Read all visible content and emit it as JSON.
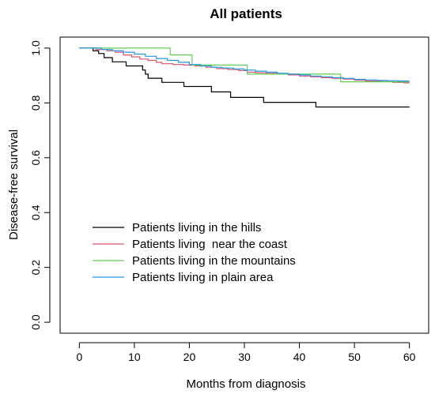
{
  "chart_data": {
    "type": "line",
    "title": "All patients",
    "xlabel": "Months from diagnosis",
    "ylabel": "Disease-free survival",
    "xlim": [
      -3.5,
      63.5
    ],
    "ylim": [
      -0.04,
      1.04
    ],
    "x_ticks": [
      0,
      10,
      20,
      30,
      40,
      50,
      60
    ],
    "y_ticks": [
      0.0,
      0.2,
      0.4,
      0.6,
      0.8,
      1.0
    ],
    "x_tick_labels": [
      "0",
      "10",
      "20",
      "30",
      "40",
      "50",
      "60"
    ],
    "y_tick_labels": [
      "0.0",
      "0.2",
      "0.4",
      "0.6",
      "0.8",
      "1.0"
    ],
    "legend_position": "lower-left",
    "series": [
      {
        "name": "Patients living in the hills",
        "color": "#000000",
        "step": true,
        "points": [
          [
            0,
            1.0
          ],
          [
            2.5,
            0.99
          ],
          [
            3.5,
            0.98
          ],
          [
            4.5,
            0.965
          ],
          [
            6,
            0.95
          ],
          [
            8.5,
            0.935
          ],
          [
            11.5,
            0.92
          ],
          [
            12,
            0.905
          ],
          [
            12.5,
            0.89
          ],
          [
            15,
            0.875
          ],
          [
            19,
            0.86
          ],
          [
            24,
            0.84
          ],
          [
            27.5,
            0.82
          ],
          [
            33.5,
            0.802
          ],
          [
            43,
            0.785
          ],
          [
            60,
            0.785
          ]
        ]
      },
      {
        "name": "Patients living  near the coast",
        "color": "#DF536B",
        "step": true,
        "points": [
          [
            0,
            1.0
          ],
          [
            3,
            0.995
          ],
          [
            5,
            0.99
          ],
          [
            6.5,
            0.985
          ],
          [
            8,
            0.975
          ],
          [
            9.5,
            0.968
          ],
          [
            11,
            0.96
          ],
          [
            12.5,
            0.955
          ],
          [
            14,
            0.948
          ],
          [
            15,
            0.943
          ],
          [
            17,
            0.94
          ],
          [
            19,
            0.938
          ],
          [
            21,
            0.935
          ],
          [
            23,
            0.93
          ],
          [
            25,
            0.925
          ],
          [
            27,
            0.922
          ],
          [
            29,
            0.918
          ],
          [
            30.5,
            0.912
          ],
          [
            32,
            0.91
          ],
          [
            34,
            0.908
          ],
          [
            36,
            0.905
          ],
          [
            38,
            0.902
          ],
          [
            40,
            0.898
          ],
          [
            42,
            0.895
          ],
          [
            44,
            0.892
          ],
          [
            46,
            0.89
          ],
          [
            48,
            0.887
          ],
          [
            50,
            0.883
          ],
          [
            52,
            0.88
          ],
          [
            55,
            0.878
          ],
          [
            57,
            0.875
          ],
          [
            59,
            0.873
          ],
          [
            60,
            0.873
          ]
        ]
      },
      {
        "name": "Patients living in the mountains",
        "color": "#61D04F",
        "step": true,
        "points": [
          [
            0,
            1.0
          ],
          [
            16.5,
            0.975
          ],
          [
            20.5,
            0.938
          ],
          [
            30.5,
            0.905
          ],
          [
            47.5,
            0.877
          ],
          [
            60,
            0.877
          ]
        ]
      },
      {
        "name": "Patients living in plain area",
        "color": "#2297E6",
        "step": true,
        "points": [
          [
            0,
            1.0
          ],
          [
            4,
            0.995
          ],
          [
            6,
            0.99
          ],
          [
            8,
            0.985
          ],
          [
            10,
            0.978
          ],
          [
            12,
            0.97
          ],
          [
            14,
            0.962
          ],
          [
            16,
            0.955
          ],
          [
            18,
            0.948
          ],
          [
            20,
            0.94
          ],
          [
            22,
            0.935
          ],
          [
            24,
            0.93
          ],
          [
            26,
            0.927
          ],
          [
            28,
            0.924
          ],
          [
            30,
            0.92
          ],
          [
            32,
            0.916
          ],
          [
            34,
            0.912
          ],
          [
            36,
            0.908
          ],
          [
            38,
            0.905
          ],
          [
            40,
            0.902
          ],
          [
            42,
            0.898
          ],
          [
            44,
            0.895
          ],
          [
            46,
            0.892
          ],
          [
            48,
            0.889
          ],
          [
            50,
            0.886
          ],
          [
            52,
            0.884
          ],
          [
            54,
            0.882
          ],
          [
            56,
            0.881
          ],
          [
            58,
            0.88
          ],
          [
            60,
            0.88
          ]
        ]
      }
    ]
  }
}
